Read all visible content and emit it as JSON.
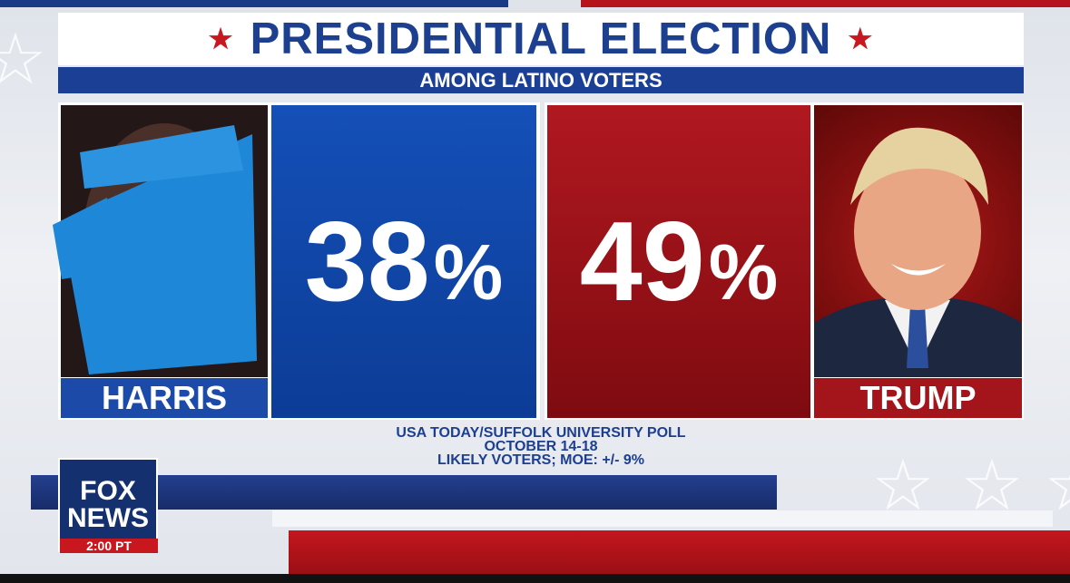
{
  "title": "PRESIDENTIAL ELECTION",
  "subtitle": "AMONG LATINO VOTERS",
  "star": "★",
  "candidates": [
    {
      "name": "HARRIS",
      "percent": "38",
      "sign": "%",
      "color": "#1450b8"
    },
    {
      "name": "TRUMP",
      "percent": "49",
      "sign": "%",
      "color": "#b11820"
    }
  ],
  "source": {
    "line1": "USA TODAY/SUFFOLK UNIVERSITY  POLL",
    "line2": "OCTOBER 14-18",
    "line3": "LIKELY VOTERS; MOE: +/- 9%"
  },
  "logo": {
    "top": "FOX",
    "bottom": "NEWS",
    "time": "2:00 PT"
  },
  "colors": {
    "accent_blue": "#1c3f8f",
    "accent_red": "#c8171f"
  }
}
